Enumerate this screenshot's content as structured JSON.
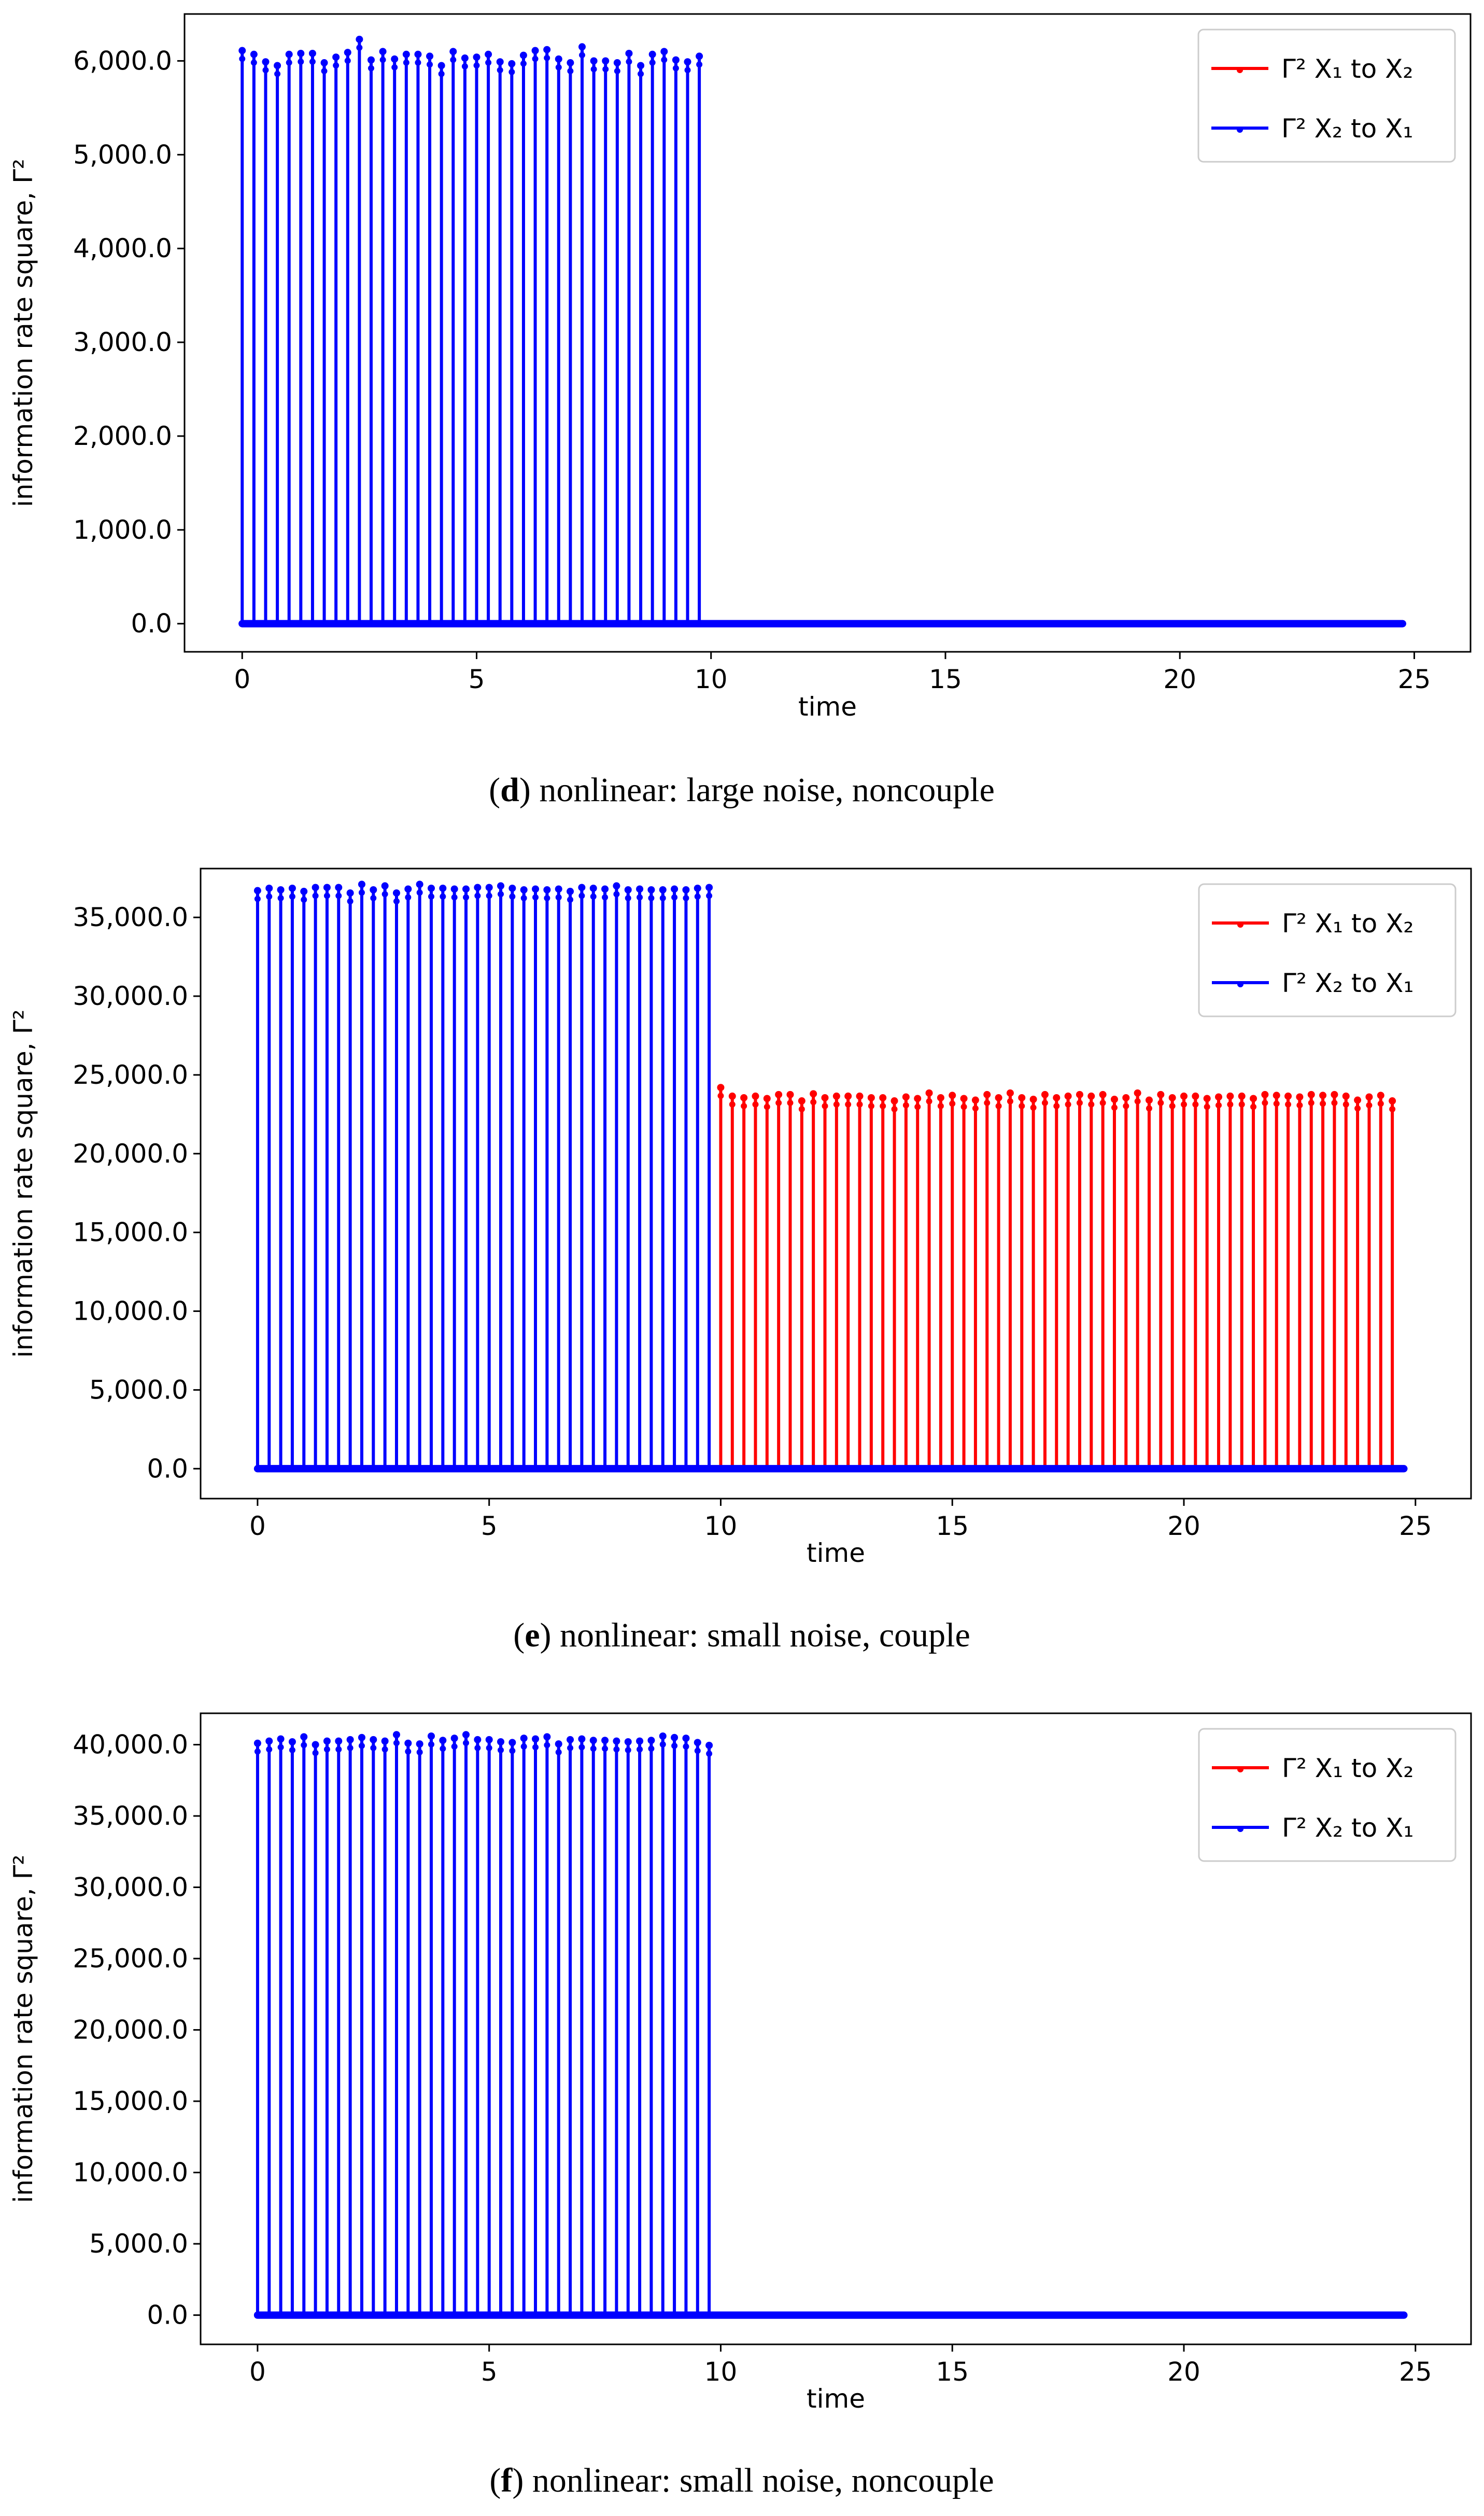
{
  "figure": {
    "panels": [
      {
        "id": "d",
        "caption_letter": "d",
        "caption_text": "nonlinear: large noise, noncouple"
      },
      {
        "id": "e",
        "caption_letter": "e",
        "caption_text": "nonlinear: small noise, couple"
      },
      {
        "id": "f",
        "caption_letter": "f",
        "caption_text": "nonlinear: small noise, noncouple"
      }
    ]
  },
  "colors": {
    "series_x1_to_x2": "#ff0000",
    "series_x2_to_x1": "#0000ff",
    "axis": "#000000",
    "legend_border": "#cccccc"
  },
  "chart_data": [
    {
      "panel": "d",
      "type": "line",
      "title": "(d) nonlinear: large noise, noncouple",
      "xlabel": "time",
      "ylabel": "information rate square, Γ²",
      "xlim": [
        -1.23,
        26.2
      ],
      "ylim": [
        -300,
        6500
      ],
      "xticks": [
        0,
        5,
        10,
        15,
        20,
        25
      ],
      "yticks": [
        0,
        1000,
        2000,
        3000,
        4000,
        5000,
        6000
      ],
      "ytick_labels": [
        "0.0",
        "1,000.0",
        "2,000.0",
        "3,000.0",
        "4,000.0",
        "5,000.0",
        "6,000.0"
      ],
      "legend": {
        "position": "upper right",
        "entries": [
          "Γ² X₁ to X₂",
          "Γ² X₂ to X₁"
        ]
      },
      "grid": false,
      "series": [
        {
          "name": "Γ² X₁ to X₂",
          "color": "#ff0000",
          "spike_times": [],
          "spike_values": [],
          "baseline": 0
        },
        {
          "name": "Γ² X₂ to X₁",
          "color": "#0000ff",
          "spike_start": 0,
          "spike_step": 0.25,
          "baseline": 0,
          "spike_values": [
            6110,
            6070,
            5990,
            5950,
            6070,
            6080,
            6080,
            5980,
            6040,
            6090,
            6230,
            6010,
            6100,
            6020,
            6070,
            6070,
            6050,
            5950,
            6100,
            6030,
            6040,
            6070,
            5990,
            5970,
            6060,
            6110,
            6120,
            6020,
            5980,
            6150,
            6000,
            6000,
            5980,
            6080,
            5950,
            6070,
            6100,
            6010,
            5990,
            6050
          ]
        }
      ],
      "baseline_range": [
        0,
        24.75
      ]
    },
    {
      "panel": "e",
      "type": "line",
      "title": "(e) nonlinear: small noise, couple",
      "xlabel": "time",
      "ylabel": "information rate square, Γ²",
      "xlim": [
        -1.23,
        26.2
      ],
      "ylim": [
        -1900,
        38100
      ],
      "xticks": [
        0,
        5,
        10,
        15,
        20,
        25
      ],
      "yticks": [
        0,
        5000,
        10000,
        15000,
        20000,
        25000,
        30000,
        35000
      ],
      "ytick_labels": [
        "0.0",
        "5,000.0",
        "10,000.0",
        "15,000.0",
        "20,000.0",
        "25,000.0",
        "30,000.0",
        "35,000.0"
      ],
      "legend": {
        "position": "upper right",
        "entries": [
          "Γ² X₁ to X₂",
          "Γ² X₂ to X₁"
        ]
      },
      "grid": false,
      "series": [
        {
          "name": "Γ² X₁ to X₂",
          "color": "#ff0000",
          "spike_start": 10,
          "spike_step": 0.25,
          "baseline": 0,
          "spike_values": [
            24200,
            23650,
            23550,
            23650,
            23500,
            23750,
            23750,
            23350,
            23800,
            23550,
            23650,
            23650,
            23650,
            23550,
            23550,
            23350,
            23600,
            23500,
            23850,
            23550,
            23700,
            23500,
            23400,
            23750,
            23550,
            23850,
            23550,
            23450,
            23750,
            23550,
            23650,
            23750,
            23650,
            23750,
            23450,
            23550,
            23850,
            23400,
            23750,
            23550,
            23650,
            23650,
            23500,
            23600,
            23650,
            23650,
            23500,
            23750,
            23700,
            23650,
            23600,
            23750,
            23700,
            23750,
            23650,
            23400,
            23600,
            23700,
            23350
          ]
        },
        {
          "name": "Γ² X₂ to X₁",
          "color": "#0000ff",
          "spike_start": 0,
          "spike_step": 0.25,
          "baseline": 0,
          "spike_values": [
            36700,
            36850,
            36750,
            36850,
            36650,
            36900,
            36900,
            36900,
            36550,
            37100,
            36750,
            37000,
            36550,
            36800,
            37100,
            36850,
            36850,
            36800,
            36800,
            36900,
            36900,
            37000,
            36850,
            36750,
            36800,
            36750,
            36800,
            36650,
            36900,
            36850,
            36800,
            37000,
            36750,
            36800,
            36750,
            36750,
            36800,
            36750,
            36850,
            36900
          ]
        }
      ],
      "baseline_range": [
        0,
        24.75
      ]
    },
    {
      "panel": "f",
      "type": "line",
      "title": "(f) nonlinear: small noise, noncouple",
      "xlabel": "time",
      "ylabel": "information rate square, Γ²",
      "xlim": [
        -1.23,
        26.2
      ],
      "ylim": [
        -2050,
        42200
      ],
      "xticks": [
        0,
        5,
        10,
        15,
        20,
        25
      ],
      "yticks": [
        0,
        5000,
        10000,
        15000,
        20000,
        25000,
        30000,
        35000,
        40000
      ],
      "ytick_labels": [
        "0.0",
        "5,000.0",
        "10,000.0",
        "15,000.0",
        "20,000.0",
        "25,000.0",
        "30,000.0",
        "35,000.0",
        "40,000.0"
      ],
      "legend": {
        "position": "upper right",
        "entries": [
          "Γ² X₁ to X₂",
          "Γ² X₂ to X₁"
        ]
      },
      "grid": false,
      "series": [
        {
          "name": "Γ² X₁ to X₂",
          "color": "#ff0000",
          "spike_times": [],
          "spike_values": [],
          "baseline": 0
        },
        {
          "name": "Γ² X₂ to X₁",
          "color": "#0000ff",
          "spike_start": 0,
          "spike_step": 0.25,
          "baseline": 0,
          "spike_values": [
            40100,
            40250,
            40400,
            40200,
            40550,
            40000,
            40250,
            40250,
            40350,
            40500,
            40350,
            40250,
            40700,
            40100,
            40050,
            40600,
            40300,
            40450,
            40700,
            40350,
            40350,
            40200,
            40150,
            40450,
            40400,
            40550,
            40050,
            40350,
            40400,
            40300,
            40300,
            40250,
            40200,
            40250,
            40300,
            40600,
            40500,
            40450,
            40150,
            39950
          ]
        }
      ],
      "baseline_range": [
        0,
        24.75
      ]
    }
  ]
}
